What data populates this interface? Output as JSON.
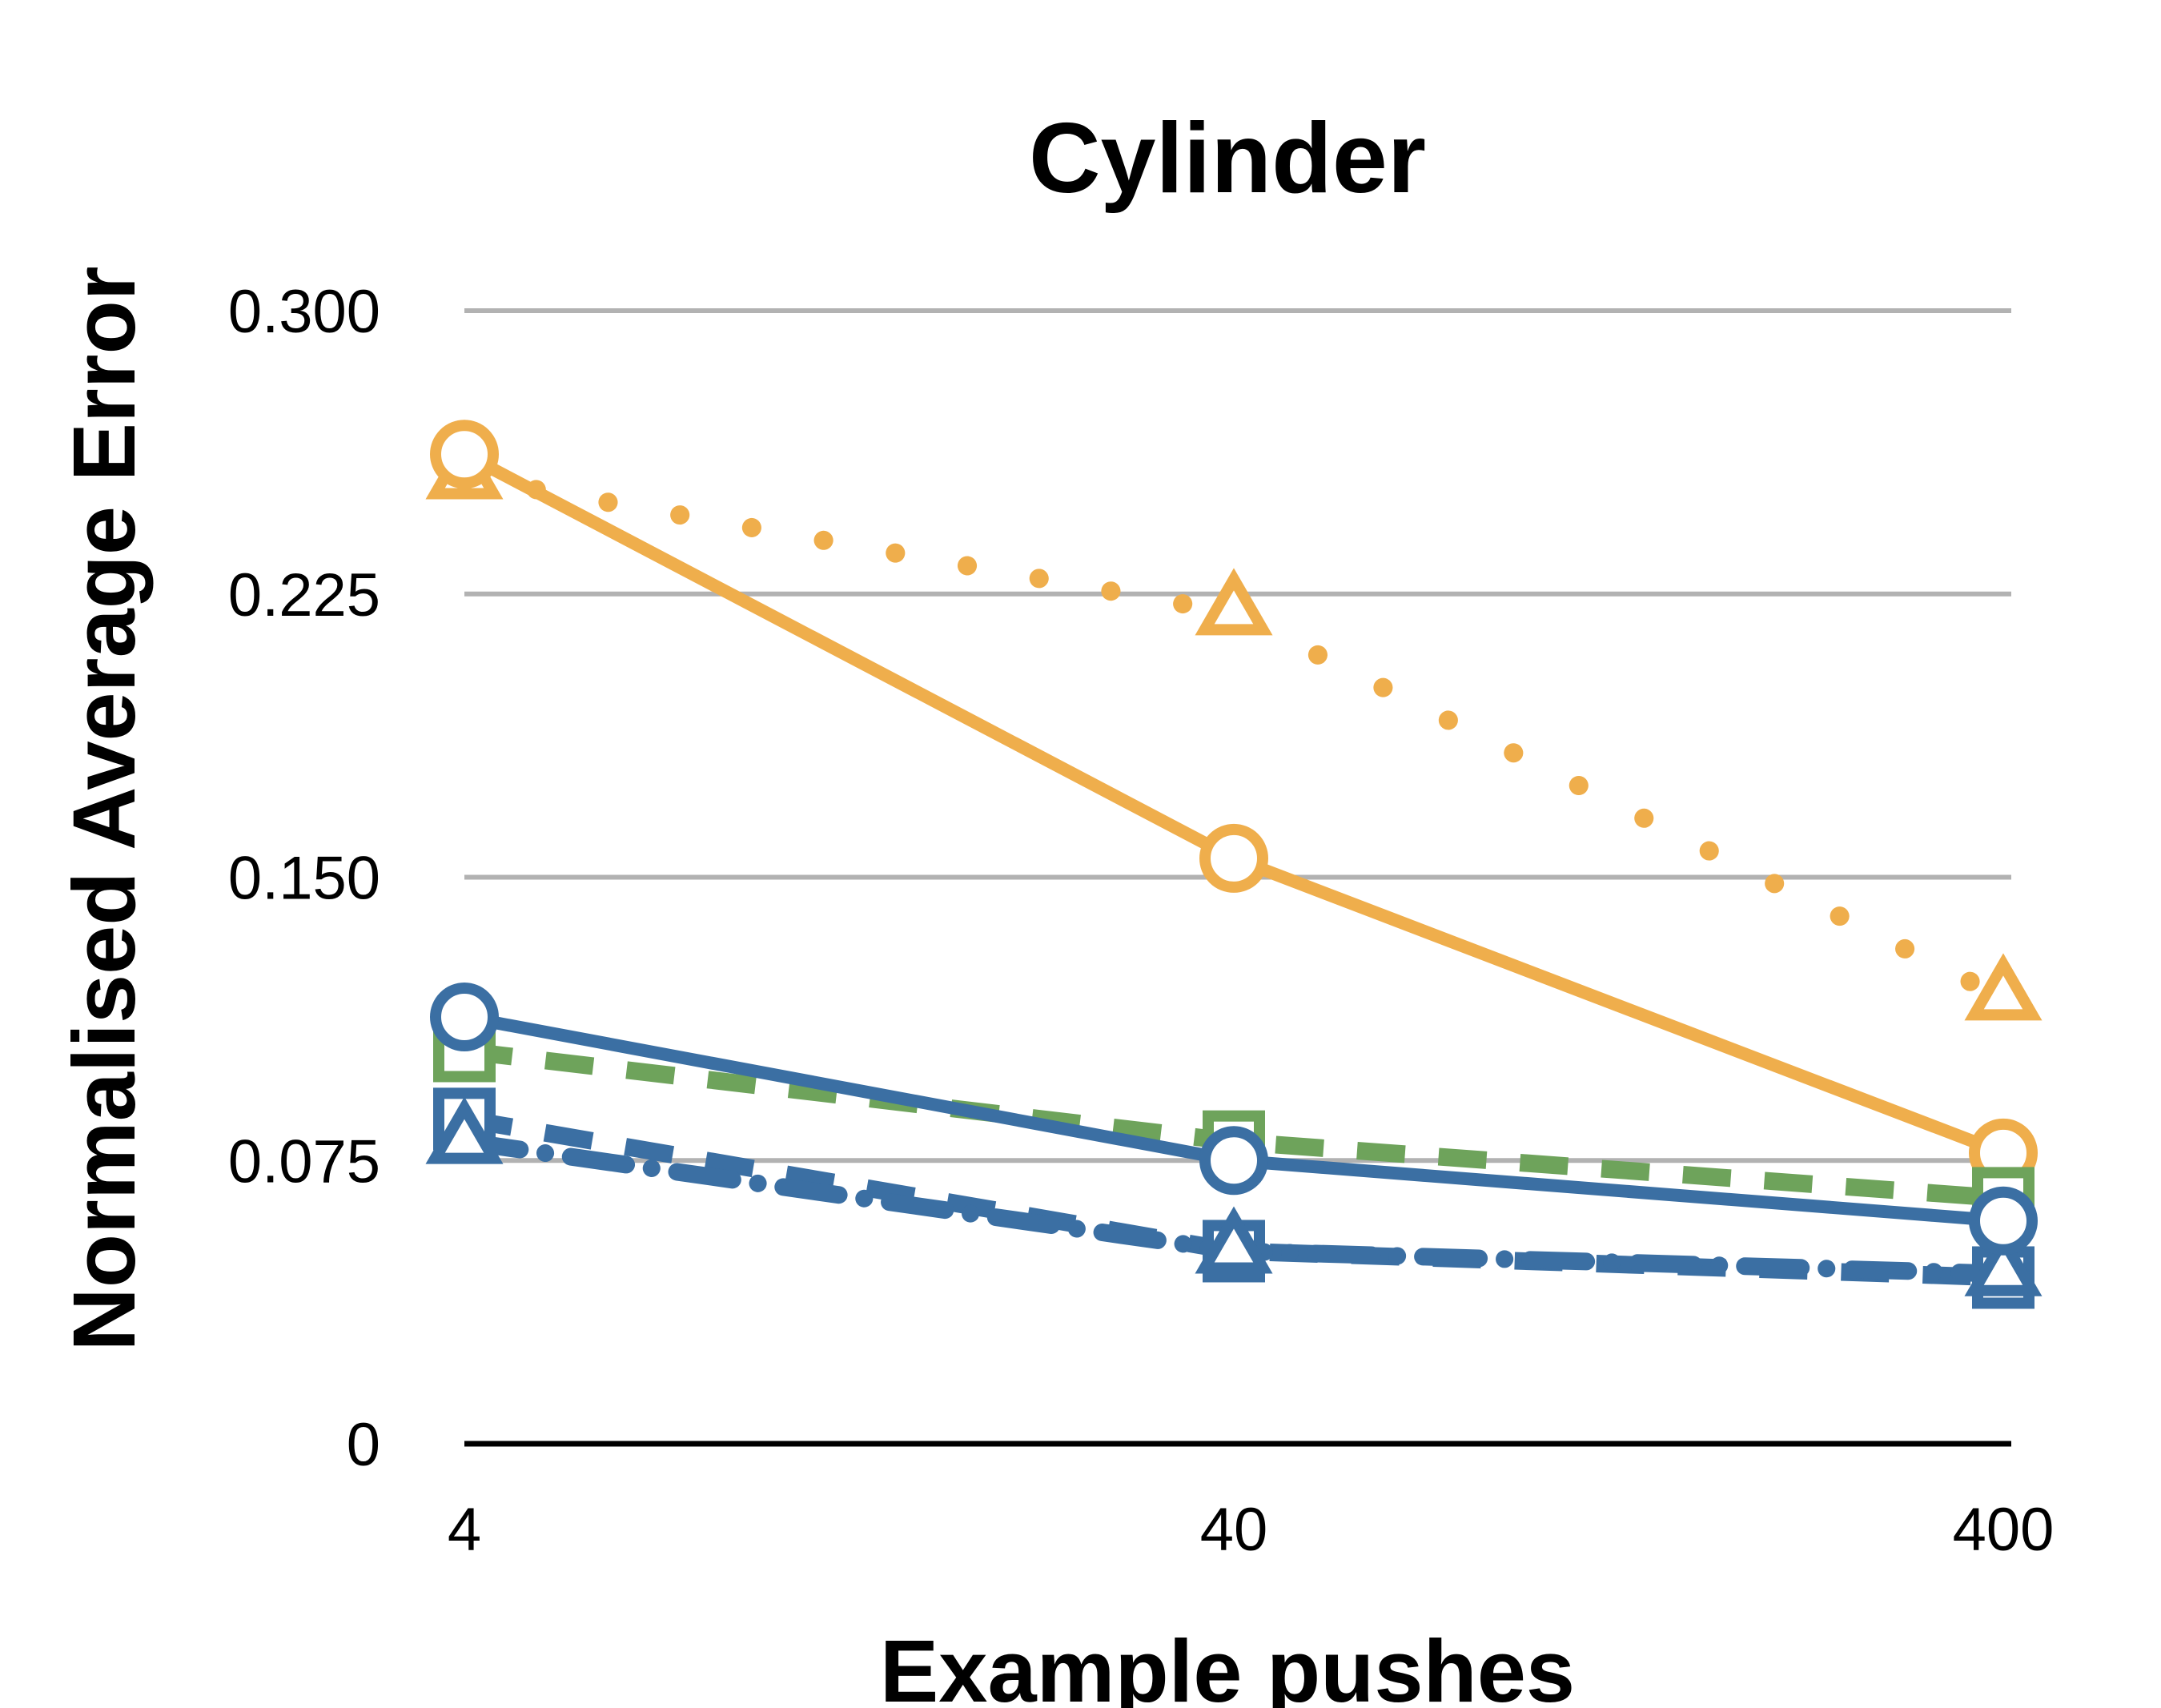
{
  "chart_data": {
    "type": "line",
    "title": "Cylinder",
    "xlabel": "Example pushes",
    "ylabel": "Normalised Average Error",
    "x_scale": "log",
    "categories": [
      "4",
      "40",
      "400"
    ],
    "ylim": [
      0,
      0.3
    ],
    "yticks": [
      "0",
      "0.075",
      "0.150",
      "0.225",
      "0.300"
    ],
    "grid": true,
    "legend": "none",
    "series": [
      {
        "values": [
          0.256,
          0.22,
          0.118
        ],
        "color": "#efae4c",
        "line": "dotted",
        "marker": "triangle"
      },
      {
        "values": [
          0.262,
          0.155,
          0.077
        ],
        "color": "#efae4c",
        "line": "solid",
        "marker": "circle"
      },
      {
        "values": [
          0.104,
          0.08,
          0.065
        ],
        "color": "#6ea35b",
        "line": "dashed",
        "marker": "square"
      },
      {
        "values": [
          0.086,
          0.051,
          0.044
        ],
        "color": "#3b6fa3",
        "line": "dashed",
        "marker": "square"
      },
      {
        "values": [
          0.08,
          0.051,
          0.045
        ],
        "color": "#3b6fa3",
        "line": "dashdot",
        "marker": "triangle"
      },
      {
        "values": [
          0.113,
          0.075,
          0.059
        ],
        "color": "#3b6fa3",
        "line": "solid",
        "marker": "circle"
      }
    ]
  }
}
